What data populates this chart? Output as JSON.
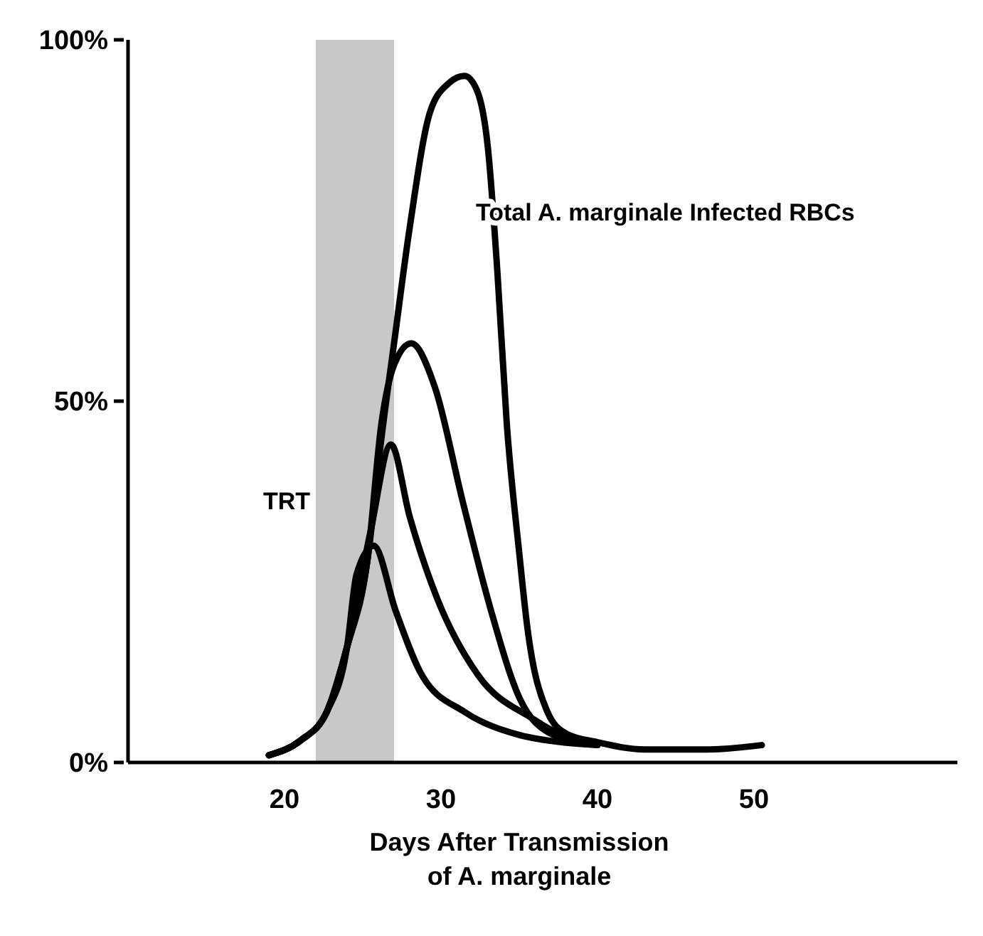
{
  "chart_data": {
    "type": "line",
    "xlabel": "Days After Transmission\nof A. marginale",
    "xlim": [
      10,
      63
    ],
    "ylim": [
      0,
      100
    ],
    "xticks": [
      20,
      30,
      40,
      50
    ],
    "yticks": [
      {
        "value": 0,
        "label": "0%"
      },
      {
        "value": 50,
        "label": "50%"
      },
      {
        "value": 100,
        "label": "100%"
      }
    ],
    "grid": false,
    "legend": false,
    "marker": "none",
    "line_style": "solid",
    "bands": [
      {
        "axis": "x",
        "from": 22,
        "to": 27,
        "label": "TRT",
        "color": "#9a9a9a"
      }
    ],
    "series": [
      {
        "name": "Total A. marginale Infected RBCs",
        "color": "#000000",
        "x": [
          19,
          21,
          22.7,
          24,
          25.3,
          26.2,
          27,
          28,
          29.3,
          30.5,
          31.5,
          32.3,
          33,
          33.6,
          34.2,
          35,
          35.5,
          36.8,
          38,
          40,
          43,
          47,
          50.5
        ],
        "values": [
          1,
          3,
          7,
          16,
          28,
          45,
          58,
          74,
          90,
          94,
          95,
          93,
          85,
          68,
          47,
          29,
          19,
          7,
          4,
          2.8,
          1.8,
          1.8,
          2.4
        ]
      },
      {
        "color": "#000000",
        "x": [
          19,
          21,
          22.7,
          24,
          25.3,
          26.2,
          27,
          28.1,
          29.6,
          31.4,
          33.2,
          35,
          37.2,
          40
        ],
        "values": [
          1,
          3,
          7,
          16,
          28,
          47,
          55,
          58,
          52,
          36,
          21,
          9,
          3.8,
          2.4
        ]
      },
      {
        "color": "#000000",
        "x": [
          19,
          21,
          22.7,
          24,
          25.5,
          26.8,
          28,
          29.7,
          32.4,
          35.9,
          37.7,
          40
        ],
        "values": [
          1,
          3,
          7,
          16,
          32,
          44,
          34,
          23,
          12,
          6,
          3.8,
          2.4
        ]
      },
      {
        "color": "#000000",
        "x": [
          19,
          21,
          22.7,
          24,
          24.6,
          25.7,
          27.1,
          28.8,
          31.5,
          35,
          37.7,
          40
        ],
        "values": [
          1,
          3,
          7,
          16,
          26,
          30,
          21,
          12,
          7,
          3.8,
          2.8,
          2.4
        ]
      }
    ]
  }
}
